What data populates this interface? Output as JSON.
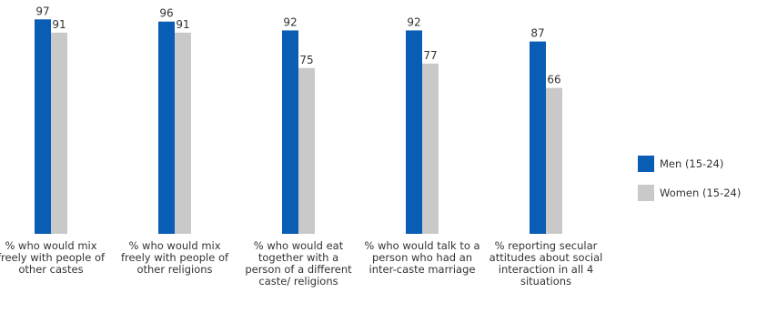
{
  "chart_data": {
    "type": "bar",
    "categories": [
      "% who would mix freely with people of other castes",
      "% who would mix freely with people of other religions",
      "% who would eat together with a person of a different caste/ religions",
      "% who would talk to a person who had an inter-caste marriage",
      "% reporting secular attitudes about social interaction in all 4 situations"
    ],
    "series": [
      {
        "name": "Men (15-24)",
        "color": "#0a5db4",
        "values": [
          97,
          96,
          92,
          92,
          87
        ]
      },
      {
        "name": "Women (15-24)",
        "color": "#c9c9c9",
        "values": [
          91,
          91,
          75,
          77,
          66
        ]
      }
    ],
    "ylim": [
      0,
      100
    ],
    "grid": false,
    "legend_position": "right",
    "data_labels": true
  }
}
